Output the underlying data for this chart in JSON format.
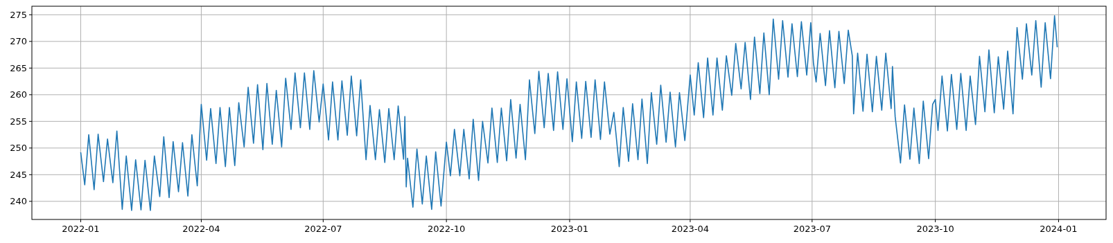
{
  "chart_data": {
    "type": "line",
    "xlim": [
      "2021-11-25T13:00",
      "2024-02-05T11:00"
    ],
    "ylim": [
      236.6,
      276.6
    ],
    "xticks": [
      "2022-01",
      "2022-04",
      "2022-07",
      "2022-10",
      "2023-01",
      "2023-04",
      "2023-07",
      "2023-10",
      "2024-01"
    ],
    "yticks": [
      240,
      245,
      250,
      255,
      260,
      265,
      270,
      275
    ],
    "grid": true,
    "x": [
      "2022-01-01",
      "2022-01-04",
      "2022-01-07",
      "2022-01-11",
      "2022-01-14",
      "2022-01-18",
      "2022-01-21",
      "2022-01-25",
      "2022-01-28",
      "2022-02-01",
      "2022-02-04",
      "2022-02-08",
      "2022-02-11",
      "2022-02-15",
      "2022-02-18",
      "2022-02-22",
      "2022-02-25",
      "2022-03-01",
      "2022-03-04",
      "2022-03-08",
      "2022-03-11",
      "2022-03-15",
      "2022-03-18",
      "2022-03-22",
      "2022-03-25",
      "2022-03-29",
      "2022-04-01",
      "2022-04-05",
      "2022-04-08",
      "2022-04-12",
      "2022-04-15",
      "2022-04-19",
      "2022-04-22",
      "2022-04-26",
      "2022-04-29",
      "2022-05-03",
      "2022-05-06",
      "2022-05-10",
      "2022-05-13",
      "2022-05-17",
      "2022-05-20",
      "2022-05-24",
      "2022-05-27",
      "2022-05-31",
      "2022-06-03",
      "2022-06-07",
      "2022-06-10",
      "2022-06-14",
      "2022-06-17",
      "2022-06-21",
      "2022-06-24",
      "2022-06-28",
      "2022-07-01",
      "2022-07-05",
      "2022-07-08",
      "2022-07-12",
      "2022-07-15",
      "2022-07-19",
      "2022-07-22",
      "2022-07-26",
      "2022-07-29",
      "2022-08-02",
      "2022-08-05",
      "2022-08-09",
      "2022-08-12",
      "2022-08-16",
      "2022-08-19",
      "2022-08-23",
      "2022-08-26",
      "2022-08-30",
      "2022-08-31",
      "2022-09-01",
      "2022-09-02",
      "2022-09-06",
      "2022-09-09",
      "2022-09-13",
      "2022-09-16",
      "2022-09-20",
      "2022-09-23",
      "2022-09-27",
      "2022-10-01",
      "2022-10-04",
      "2022-10-07",
      "2022-10-11",
      "2022-10-14",
      "2022-10-18",
      "2022-10-21",
      "2022-10-25",
      "2022-10-28",
      "2022-11-01",
      "2022-11-04",
      "2022-11-08",
      "2022-11-11",
      "2022-11-15",
      "2022-11-18",
      "2022-11-22",
      "2022-11-25",
      "2022-11-29",
      "2022-12-02",
      "2022-12-06",
      "2022-12-09",
      "2022-12-13",
      "2022-12-16",
      "2022-12-20",
      "2022-12-23",
      "2022-12-27",
      "2022-12-30",
      "2023-01-03",
      "2023-01-06",
      "2023-01-10",
      "2023-01-13",
      "2023-01-17",
      "2023-01-20",
      "2023-01-24",
      "2023-01-27",
      "2023-01-31",
      "2023-02-03",
      "2023-02-07",
      "2023-02-10",
      "2023-02-14",
      "2023-02-17",
      "2023-02-21",
      "2023-02-24",
      "2023-02-28",
      "2023-03-03",
      "2023-03-07",
      "2023-03-10",
      "2023-03-14",
      "2023-03-17",
      "2023-03-21",
      "2023-03-24",
      "2023-03-28",
      "2023-04-01",
      "2023-04-04",
      "2023-04-07",
      "2023-04-11",
      "2023-04-14",
      "2023-04-18",
      "2023-04-21",
      "2023-04-25",
      "2023-04-28",
      "2023-05-02",
      "2023-05-05",
      "2023-05-09",
      "2023-05-12",
      "2023-05-16",
      "2023-05-19",
      "2023-05-23",
      "2023-05-26",
      "2023-05-30",
      "2023-06-02",
      "2023-06-06",
      "2023-06-09",
      "2023-06-13",
      "2023-06-16",
      "2023-06-20",
      "2023-06-23",
      "2023-06-27",
      "2023-06-30",
      "2023-07-02",
      "2023-07-04",
      "2023-07-07",
      "2023-07-11",
      "2023-07-14",
      "2023-07-18",
      "2023-07-21",
      "2023-07-25",
      "2023-07-28",
      "2023-07-31",
      "2023-08-01",
      "2023-08-04",
      "2023-08-08",
      "2023-08-11",
      "2023-08-15",
      "2023-08-18",
      "2023-08-22",
      "2023-08-25",
      "2023-08-29",
      "2023-08-30",
      "2023-09-01",
      "2023-09-05",
      "2023-09-08",
      "2023-09-12",
      "2023-09-15",
      "2023-09-19",
      "2023-09-22",
      "2023-09-26",
      "2023-09-29",
      "2023-10-01",
      "2023-10-03",
      "2023-10-06",
      "2023-10-10",
      "2023-10-13",
      "2023-10-17",
      "2023-10-20",
      "2023-10-24",
      "2023-10-27",
      "2023-10-31",
      "2023-11-03",
      "2023-11-07",
      "2023-11-10",
      "2023-11-14",
      "2023-11-17",
      "2023-11-21",
      "2023-11-24",
      "2023-11-28",
      "2023-12-01",
      "2023-12-05",
      "2023-12-08",
      "2023-12-12",
      "2023-12-15",
      "2023-12-19",
      "2023-12-22",
      "2023-12-26",
      "2023-12-29",
      "2023-12-31"
    ],
    "series": [
      {
        "color": "#1f77b4",
        "values": [
          249.2,
          243.1,
          252.5,
          242.2,
          252.6,
          243.7,
          251.7,
          243.5,
          253.2,
          238.5,
          248.5,
          238.3,
          247.8,
          238.4,
          247.7,
          238.3,
          248.5,
          240.9,
          252.1,
          240.7,
          251.2,
          241.8,
          251.0,
          241.0,
          252.5,
          242.9,
          258.2,
          247.7,
          257.4,
          247.1,
          257.6,
          246.5,
          257.6,
          246.7,
          258.5,
          250.2,
          261.4,
          250.9,
          261.9,
          249.7,
          262.1,
          250.7,
          260.8,
          250.2,
          263.1,
          253.5,
          264.1,
          253.8,
          264.1,
          253.5,
          264.5,
          254.9,
          262.0,
          251.5,
          262.4,
          251.5,
          262.6,
          252.4,
          263.5,
          252.3,
          262.8,
          247.8,
          258.0,
          247.8,
          257.2,
          247.3,
          257.4,
          247.8,
          257.9,
          247.9,
          255.9,
          242.7,
          248.1,
          238.9,
          249.8,
          239.5,
          248.5,
          238.5,
          249.3,
          239.1,
          251.1,
          244.8,
          253.5,
          244.8,
          253.5,
          244.2,
          255.4,
          243.9,
          255.0,
          247.2,
          257.5,
          247.3,
          257.5,
          247.6,
          259.1,
          248.1,
          258.2,
          247.8,
          262.8,
          252.7,
          264.4,
          253.8,
          264.0,
          253.3,
          264.3,
          253.5,
          263.0,
          251.2,
          262.4,
          251.8,
          262.5,
          252.0,
          262.8,
          251.6,
          262.4,
          252.6,
          256.7,
          246.5,
          257.6,
          247.5,
          258.3,
          247.8,
          259.2,
          247.1,
          260.4,
          250.7,
          261.8,
          251.1,
          260.5,
          250.2,
          260.4,
          251.4,
          263.7,
          256.2,
          266.0,
          255.7,
          266.9,
          256.2,
          266.9,
          257.1,
          267.3,
          259.9,
          269.6,
          261.1,
          269.8,
          259.1,
          270.8,
          260.2,
          271.6,
          260.0,
          274.2,
          262.9,
          273.9,
          263.3,
          273.3,
          263.4,
          273.7,
          263.7,
          273.5,
          266.0,
          262.4,
          271.5,
          261.7,
          272.0,
          261.3,
          271.9,
          262.1,
          272.1,
          267.3,
          256.4,
          267.8,
          256.9,
          267.6,
          256.8,
          267.2,
          257.1,
          267.8,
          257.4,
          265.3,
          255.9,
          247.2,
          258.1,
          247.9,
          257.5,
          247.1,
          258.8,
          248.0,
          258.2,
          259.1,
          253.3,
          263.5,
          253.2,
          263.8,
          253.5,
          264.0,
          253.3,
          263.5,
          254.4,
          267.2,
          256.8,
          268.4,
          256.6,
          267.1,
          257.3,
          268.2,
          256.4,
          272.6,
          262.9,
          273.3,
          263.7,
          273.9,
          261.4,
          273.5,
          263.0,
          274.8,
          268.9
        ]
      }
    ]
  }
}
